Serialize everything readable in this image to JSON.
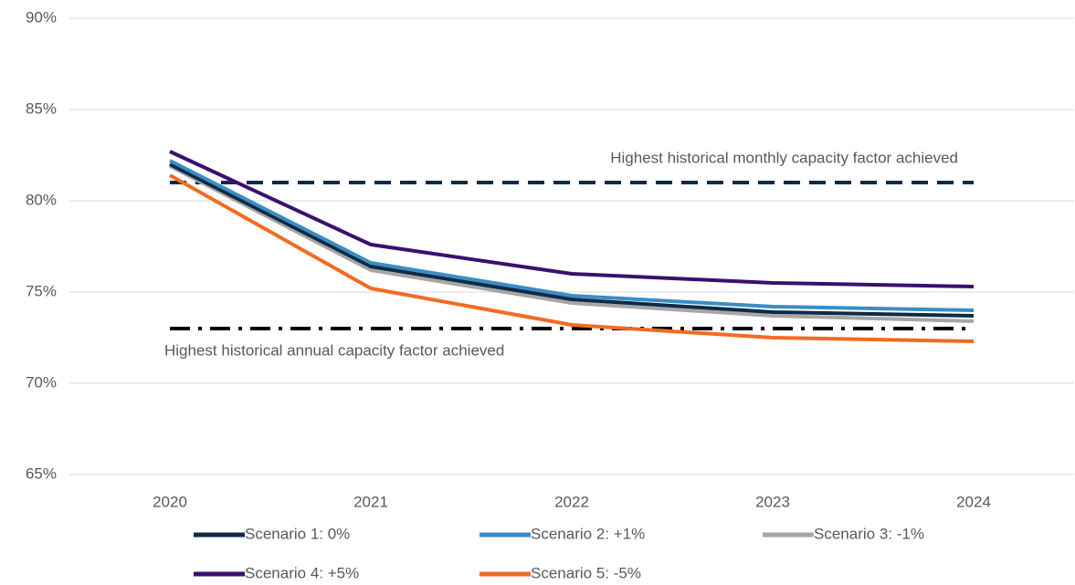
{
  "chart_data": {
    "type": "line",
    "categories": [
      "2020",
      "2021",
      "2022",
      "2023",
      "2024"
    ],
    "series": [
      {
        "name": "Scenario 1: 0%",
        "color": "#0e2a47",
        "values": [
          82.0,
          76.4,
          74.6,
          73.9,
          73.7
        ]
      },
      {
        "name": "Scenario 2: +1%",
        "color": "#3a8dc5",
        "values": [
          82.2,
          76.6,
          74.8,
          74.2,
          74.0
        ]
      },
      {
        "name": "Scenario 3: -1%",
        "color": "#a6a6a6",
        "values": [
          81.9,
          76.2,
          74.4,
          73.7,
          73.4
        ]
      },
      {
        "name": "Scenario 4: +5%",
        "color": "#3b0f70",
        "values": [
          82.7,
          77.6,
          76.0,
          75.5,
          75.3
        ]
      },
      {
        "name": "Scenario 5: -5%",
        "color": "#f26b21",
        "values": [
          81.4,
          75.2,
          73.2,
          72.5,
          72.3
        ]
      }
    ],
    "reference_lines": [
      {
        "label": "Highest historical monthly capacity factor achieved",
        "value": 81,
        "style": "dashed",
        "color": "#0e2a47"
      },
      {
        "label": "Highest historical annual capacity factor achieved",
        "value": 73,
        "style": "dashdot",
        "color": "#000000"
      }
    ],
    "ylim": [
      65,
      90
    ],
    "yticks": [
      {
        "value": 65,
        "label": "65%"
      },
      {
        "value": 70,
        "label": "70%"
      },
      {
        "value": 75,
        "label": "75%"
      },
      {
        "value": 80,
        "label": "80%"
      },
      {
        "value": 85,
        "label": "85%"
      },
      {
        "value": 90,
        "label": "90%"
      }
    ],
    "grid": true
  }
}
